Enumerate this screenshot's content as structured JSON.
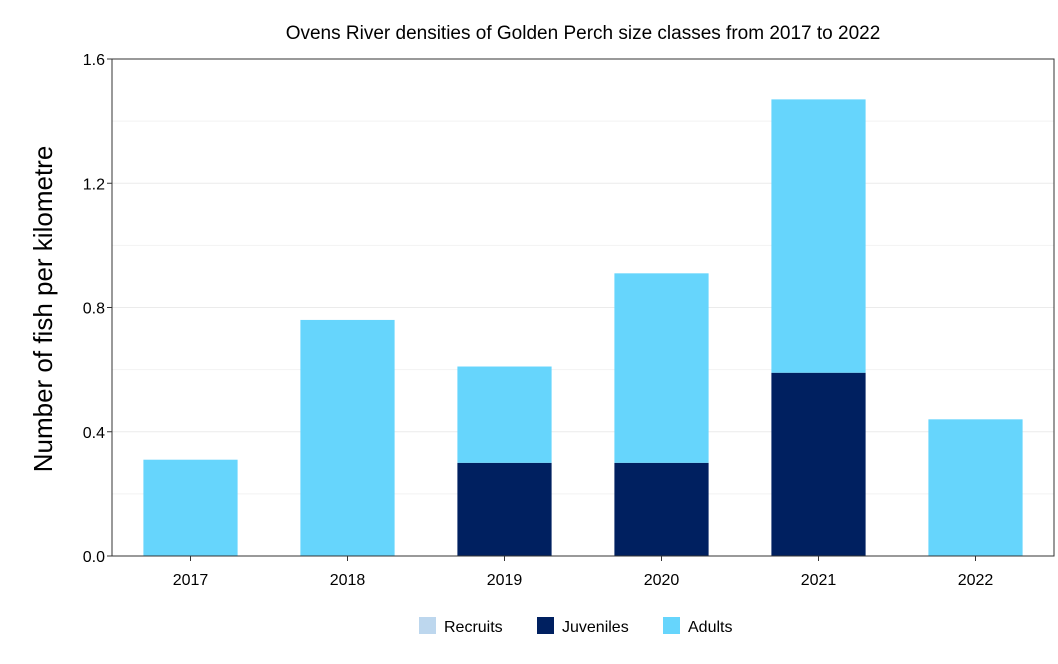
{
  "chart_data": {
    "type": "bar",
    "stacked": true,
    "title": "Ovens River densities of Golden Perch size classes from 2017 to 2022",
    "xlabel": "",
    "ylabel": "Number of fish per kilometre",
    "categories": [
      "2017",
      "2018",
      "2019",
      "2020",
      "2021",
      "2022"
    ],
    "ylim": [
      0,
      1.6
    ],
    "yticks": [
      0.0,
      0.4,
      0.8,
      1.2,
      1.6
    ],
    "ytick_labels": [
      "0.0",
      "0.4",
      "0.8",
      "1.2",
      "1.6"
    ],
    "grid": true,
    "legend_position": "bottom",
    "series": [
      {
        "name": "Recruits",
        "color": "#bdd7ee",
        "values": [
          0,
          0,
          0,
          0,
          0,
          0
        ]
      },
      {
        "name": "Juveniles",
        "color": "#002060",
        "values": [
          0,
          0,
          0.3,
          0.3,
          0.59,
          0
        ]
      },
      {
        "name": "Adults",
        "color": "#66d5fc",
        "values": [
          0.31,
          0.76,
          0.31,
          0.61,
          0.88,
          0.44
        ]
      }
    ]
  }
}
